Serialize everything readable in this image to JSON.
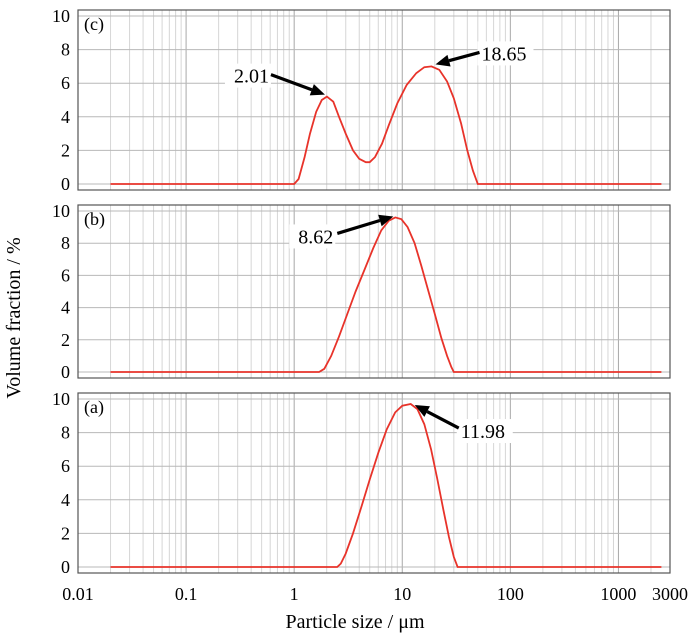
{
  "chart_data": {
    "type": "line",
    "x_scale": "log",
    "xlabel": "Particle size / μm",
    "ylabel": "Volume fraction / %",
    "xlim": [
      0.01,
      3000
    ],
    "x_ticks": [
      {
        "value": 0.01,
        "label": "0.01"
      },
      {
        "value": 0.1,
        "label": "0.1"
      },
      {
        "value": 1,
        "label": "1"
      },
      {
        "value": 10,
        "label": "10"
      },
      {
        "value": 100,
        "label": "100"
      },
      {
        "value": 1000,
        "label": "1000"
      },
      {
        "value": 3000,
        "label": "3000"
      }
    ],
    "line_color": "#e8332a",
    "panels": [
      {
        "label": "(c)",
        "ylim": [
          0,
          10
        ],
        "y_ticks": [
          "0",
          "2",
          "4",
          "6",
          "8",
          "10"
        ],
        "annotations": [
          {
            "text": "2.01",
            "x": 2.01,
            "y": 5.2
          },
          {
            "text": "18.65",
            "x": 18.65,
            "y": 7.0
          }
        ],
        "points": [
          [
            0.02,
            0
          ],
          [
            1.0,
            0
          ],
          [
            1.1,
            0.3
          ],
          [
            1.25,
            1.6
          ],
          [
            1.4,
            3.0
          ],
          [
            1.6,
            4.3
          ],
          [
            1.8,
            5.0
          ],
          [
            2.01,
            5.2
          ],
          [
            2.3,
            4.9
          ],
          [
            2.6,
            4.0
          ],
          [
            3.0,
            3.0
          ],
          [
            3.5,
            2.0
          ],
          [
            4.0,
            1.5
          ],
          [
            4.6,
            1.3
          ],
          [
            5.0,
            1.3
          ],
          [
            5.6,
            1.6
          ],
          [
            6.5,
            2.4
          ],
          [
            7.5,
            3.5
          ],
          [
            9.0,
            4.8
          ],
          [
            11,
            5.9
          ],
          [
            13.5,
            6.6
          ],
          [
            16,
            6.95
          ],
          [
            18.65,
            7.0
          ],
          [
            22,
            6.8
          ],
          [
            26,
            6.1
          ],
          [
            30,
            5.1
          ],
          [
            35,
            3.6
          ],
          [
            40,
            2.0
          ],
          [
            45,
            0.8
          ],
          [
            50,
            0
          ],
          [
            2500,
            0
          ]
        ]
      },
      {
        "label": "(b)",
        "ylim": [
          0,
          10
        ],
        "y_ticks": [
          "0",
          "2",
          "4",
          "6",
          "8",
          "10"
        ],
        "annotations": [
          {
            "text": "8.62",
            "x": 8.62,
            "y": 9.6
          }
        ],
        "points": [
          [
            0.02,
            0
          ],
          [
            1.7,
            0
          ],
          [
            1.9,
            0.2
          ],
          [
            2.2,
            1.0
          ],
          [
            2.6,
            2.2
          ],
          [
            3.1,
            3.6
          ],
          [
            3.7,
            5.0
          ],
          [
            4.5,
            6.4
          ],
          [
            5.4,
            7.7
          ],
          [
            6.4,
            8.8
          ],
          [
            7.5,
            9.4
          ],
          [
            8.62,
            9.6
          ],
          [
            9.8,
            9.5
          ],
          [
            11.2,
            9.0
          ],
          [
            13,
            8.0
          ],
          [
            15,
            6.6
          ],
          [
            17.5,
            5.0
          ],
          [
            20,
            3.6
          ],
          [
            23,
            2.1
          ],
          [
            26,
            1.0
          ],
          [
            28.5,
            0.3
          ],
          [
            30,
            0
          ],
          [
            2500,
            0
          ]
        ]
      },
      {
        "label": "(a)",
        "ylim": [
          0,
          10
        ],
        "y_ticks": [
          "0",
          "2",
          "4",
          "6",
          "8",
          "10"
        ],
        "annotations": [
          {
            "text": "11.98",
            "x": 11.98,
            "y": 9.7
          }
        ],
        "points": [
          [
            0.02,
            0
          ],
          [
            2.5,
            0
          ],
          [
            2.7,
            0.2
          ],
          [
            3.0,
            0.8
          ],
          [
            3.5,
            2.0
          ],
          [
            4.2,
            3.6
          ],
          [
            5.0,
            5.2
          ],
          [
            6.0,
            6.8
          ],
          [
            7.2,
            8.2
          ],
          [
            8.6,
            9.2
          ],
          [
            10,
            9.6
          ],
          [
            11.98,
            9.7
          ],
          [
            13.8,
            9.4
          ],
          [
            16,
            8.5
          ],
          [
            18.5,
            7.0
          ],
          [
            21,
            5.3
          ],
          [
            24,
            3.4
          ],
          [
            27,
            1.8
          ],
          [
            30,
            0.6
          ],
          [
            32.5,
            0
          ],
          [
            2500,
            0
          ]
        ]
      }
    ]
  }
}
